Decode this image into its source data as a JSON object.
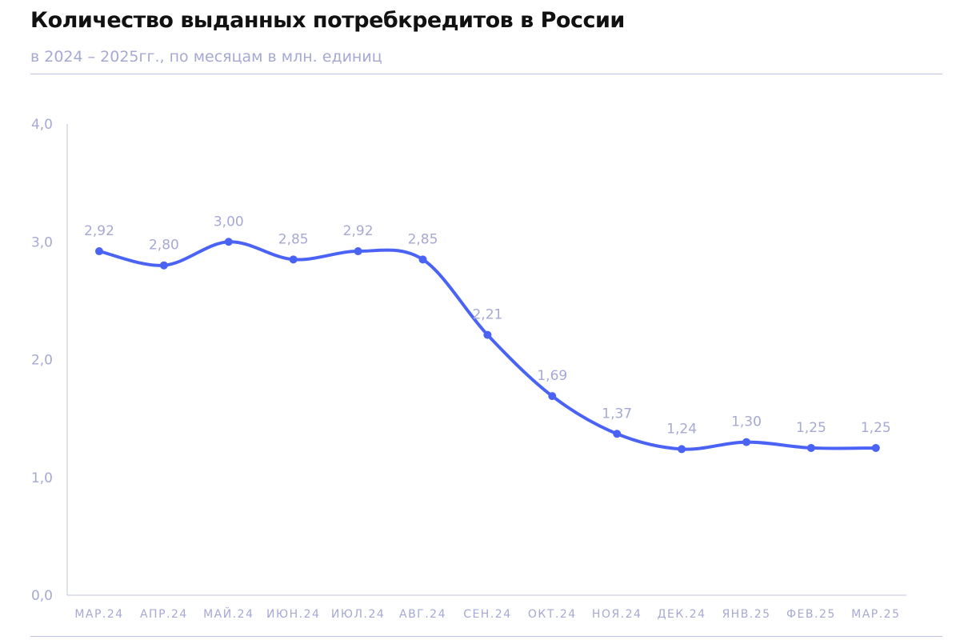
{
  "chart_data": {
    "type": "line",
    "title": "Количество выданных потребкредитов в России",
    "subtitle": "в 2024 – 2025гг., по месяцам в млн. единиц",
    "categories": [
      "МАР.24",
      "АПР.24",
      "МАЙ.24",
      "ИЮН.24",
      "ИЮЛ.24",
      "АВГ.24",
      "СЕН.24",
      "ОКТ.24",
      "НОЯ.24",
      "ДЕК.24",
      "ЯНВ.25",
      "ФЕВ.25",
      "МАР.25"
    ],
    "series": [
      {
        "values": [
          2.92,
          2.8,
          3.0,
          2.85,
          2.92,
          2.85,
          2.21,
          1.69,
          1.37,
          1.24,
          1.3,
          1.25,
          1.25
        ],
        "data_labels": [
          "2,92",
          "2,80",
          "3,00",
          "2,85",
          "2,92",
          "2,85",
          "2,21",
          "1,69",
          "1,37",
          "1,24",
          "1,30",
          "1,25",
          "1,25"
        ],
        "color": "#4b63f5"
      }
    ],
    "ylim": [
      0,
      4
    ],
    "yticks": [
      0,
      1,
      2,
      3,
      4
    ],
    "ytick_labels": [
      "0,0",
      "1,0",
      "2,0",
      "3,0",
      "4,0"
    ],
    "xlabel": "",
    "ylabel": "",
    "grid": false,
    "legend": "none"
  },
  "colors": {
    "line": "#4b63f5",
    "axis": "#bfc2e2",
    "label_text": "#a6a9d3",
    "title_text": "#111111"
  }
}
